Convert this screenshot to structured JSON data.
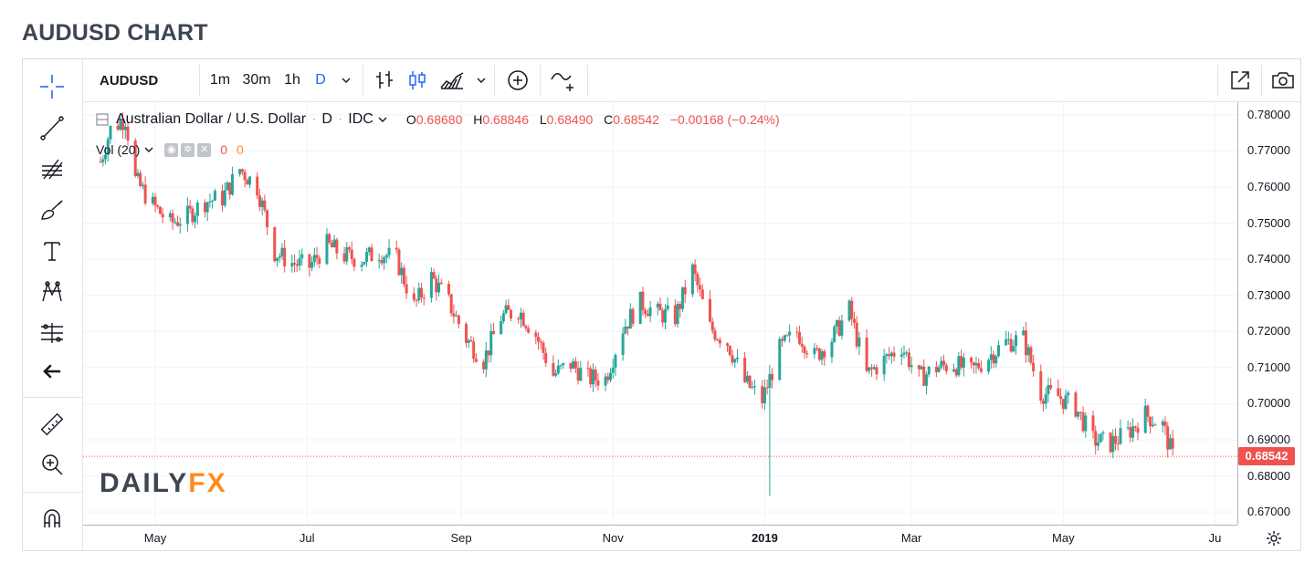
{
  "page": {
    "title": "AUDUSD CHART"
  },
  "toolbar": {
    "symbol": "AUDUSD",
    "intervals": [
      "1m",
      "30m",
      "1h",
      "D"
    ],
    "active_interval": "D",
    "icons": [
      "interval-dropdown-icon",
      "bars-icon",
      "candles-icon",
      "area-icon",
      "chart-type-dropdown-icon",
      "indicators-icon",
      "compare-icon",
      "popout-icon",
      "snapshot-icon"
    ]
  },
  "left_tools": [
    "crosshair-icon",
    "trend-line-icon",
    "fib-icon",
    "brush-icon",
    "text-icon",
    "pattern-icon",
    "prediction-icon",
    "back-arrow-icon",
    "ruler-icon",
    "zoom-icon",
    "magnet-icon"
  ],
  "legend": {
    "title": "Australian Dollar / U.S. Dollar",
    "interval": "D",
    "source": "IDC",
    "o_label": "O",
    "o": "0.68680",
    "h_label": "H",
    "h": "0.68846",
    "l_label": "L",
    "l": "0.68490",
    "c_label": "C",
    "c": "0.68542",
    "change": "−0.00168 (−0.24%)"
  },
  "volume": {
    "label": "Vol (20)",
    "v1": "0",
    "v2": "0"
  },
  "watermark": {
    "part1": "DAILY",
    "part2": "FX"
  },
  "last_price": "0.68542",
  "colors": {
    "up": "#26a69a",
    "down": "#ef5350",
    "grid": "#f0f3fa",
    "accent": "#2962ff"
  },
  "chart_data": {
    "type": "candlestick",
    "title": "Australian Dollar / U.S. Dollar",
    "x_ticks": [
      "May",
      "Jul",
      "Sep",
      "Nov",
      "2019",
      "Mar",
      "May",
      "Ju"
    ],
    "y_ticks": [
      "0.78000",
      "0.77000",
      "0.76000",
      "0.75000",
      "0.74000",
      "0.73000",
      "0.72000",
      "0.71000",
      "0.70000",
      "0.69000",
      "0.68000",
      "0.67000"
    ],
    "ylim": [
      0.6665,
      0.7835
    ],
    "close_path": [
      [
        "2018-04-09",
        0.767
      ],
      [
        "2018-04-13",
        0.776
      ],
      [
        "2018-04-19",
        0.779
      ],
      [
        "2018-04-23",
        0.762
      ],
      [
        "2018-04-30",
        0.755
      ],
      [
        "2018-05-07",
        0.75
      ],
      [
        "2018-05-14",
        0.752
      ],
      [
        "2018-05-21",
        0.756
      ],
      [
        "2018-05-28",
        0.757
      ],
      [
        "2018-06-04",
        0.765
      ],
      [
        "2018-06-11",
        0.76
      ],
      [
        "2018-06-18",
        0.742
      ],
      [
        "2018-06-25",
        0.739
      ],
      [
        "2018-07-02",
        0.738
      ],
      [
        "2018-07-09",
        0.744
      ],
      [
        "2018-07-16",
        0.741
      ],
      [
        "2018-07-23",
        0.74
      ],
      [
        "2018-07-30",
        0.742
      ],
      [
        "2018-08-06",
        0.74
      ],
      [
        "2018-08-13",
        0.727
      ],
      [
        "2018-08-20",
        0.735
      ],
      [
        "2018-08-27",
        0.728
      ],
      [
        "2018-09-03",
        0.718
      ],
      [
        "2018-09-10",
        0.712
      ],
      [
        "2018-09-17",
        0.724
      ],
      [
        "2018-09-24",
        0.726
      ],
      [
        "2018-10-01",
        0.719
      ],
      [
        "2018-10-08",
        0.708
      ],
      [
        "2018-10-15",
        0.711
      ],
      [
        "2018-10-22",
        0.707
      ],
      [
        "2018-10-29",
        0.707
      ],
      [
        "2018-11-05",
        0.721
      ],
      [
        "2018-11-12",
        0.728
      ],
      [
        "2018-11-19",
        0.725
      ],
      [
        "2018-11-26",
        0.724
      ],
      [
        "2018-12-03",
        0.737
      ],
      [
        "2018-12-10",
        0.721
      ],
      [
        "2018-12-17",
        0.717
      ],
      [
        "2018-12-24",
        0.706
      ],
      [
        "2018-12-31",
        0.701
      ],
      [
        "2019-01-07",
        0.715
      ],
      [
        "2019-01-14",
        0.72
      ],
      [
        "2019-01-21",
        0.713
      ],
      [
        "2019-01-28",
        0.718
      ],
      [
        "2019-02-04",
        0.726
      ],
      [
        "2019-02-11",
        0.708
      ],
      [
        "2019-02-18",
        0.712
      ],
      [
        "2019-02-25",
        0.716
      ],
      [
        "2019-03-04",
        0.707
      ],
      [
        "2019-03-11",
        0.71
      ],
      [
        "2019-03-18",
        0.711
      ],
      [
        "2019-03-25",
        0.709
      ],
      [
        "2019-04-01",
        0.713
      ],
      [
        "2019-04-08",
        0.717
      ],
      [
        "2019-04-15",
        0.718
      ],
      [
        "2019-04-22",
        0.703
      ],
      [
        "2019-04-29",
        0.702
      ],
      [
        "2019-05-06",
        0.699
      ],
      [
        "2019-05-13",
        0.69
      ],
      [
        "2019-05-20",
        0.689
      ],
      [
        "2019-05-27",
        0.692
      ],
      [
        "2019-06-03",
        0.697
      ],
      [
        "2019-06-10",
        0.694
      ],
      [
        "2019-06-14",
        0.68542
      ]
    ],
    "events": [
      {
        "date": "2019-01-03",
        "low": 0.6745
      }
    ]
  }
}
